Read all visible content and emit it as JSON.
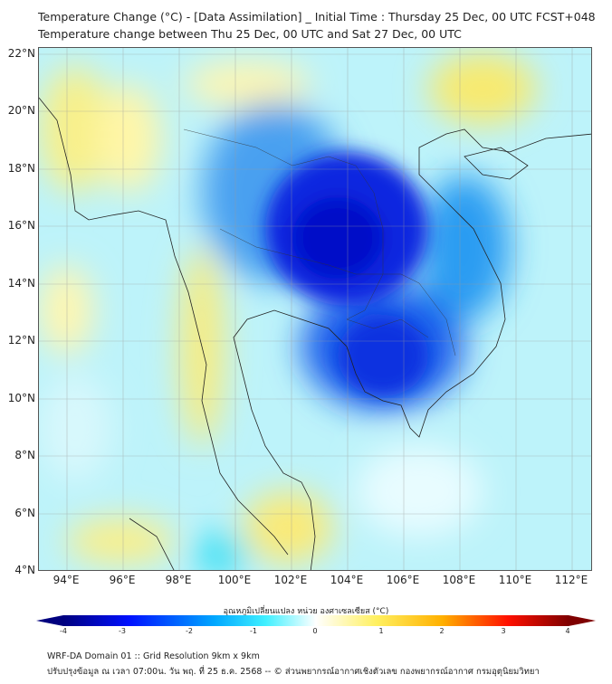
{
  "title": {
    "line1": "Temperature Change (°C) - [Data Assimilation] _ Initial Time : Thursday 25 Dec, 00 UTC FCST+048",
    "line2": "Temperature change between Thu 25 Dec, 00 UTC and Sat 27 Dec, 00 UTC"
  },
  "map": {
    "lat_labels": [
      "22°N",
      "20°N",
      "18°N",
      "16°N",
      "14°N",
      "12°N",
      "10°N",
      "8°N",
      "6°N",
      "4°N"
    ],
    "lon_labels": [
      "94°E",
      "96°E",
      "98°E",
      "100°E",
      "102°E",
      "104°E",
      "106°E",
      "108°E",
      "110°E",
      "112°E"
    ]
  },
  "colorbar": {
    "title": "อุณหภูมิเปลี่ยนแปลง หน่วย องศาเซลเซียส (°C)",
    "ticks": [
      "-4",
      "-3",
      "-2",
      "-1",
      "0",
      "1",
      "2",
      "3",
      "4"
    ],
    "range": [
      -4,
      4
    ],
    "colors": [
      "#00007f",
      "#0010ff",
      "#00a8ff",
      "#40f0ff",
      "#ffffff",
      "#fff060",
      "#ffb000",
      "#ff1000",
      "#7f0000"
    ]
  },
  "footer": {
    "line1": "WRF-DA Domain 01 :: Grid Resolution 9km x 9km",
    "line2": "ปรับปรุงข้อมูล ณ เวลา 07:00น. วัน พฤ. ที่ 25 ธ.ค. 2568 -- © ส่วนพยากรณ์อากาศเชิงตัวเลข กองพยากรณ์อากาศ กรมอุตุนิยมวิทยา"
  }
}
